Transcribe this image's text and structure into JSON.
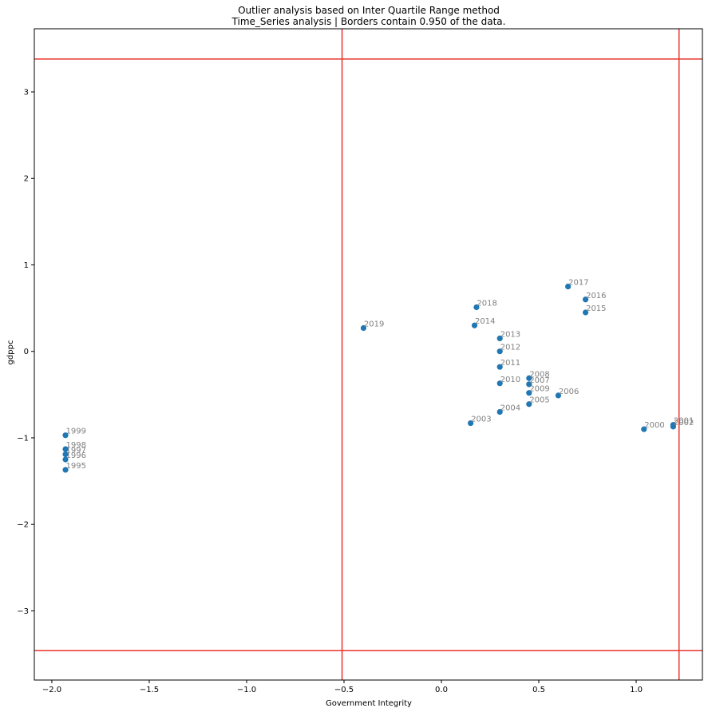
{
  "chart_data": {
    "type": "scatter",
    "title": "Outlier analysis based on Inter Quartile Range method",
    "subtitle": "Time_Series analysis | Borders contain 0.950 of the data.",
    "xlabel": "Government Integrity",
    "ylabel": "gdppc",
    "xlim": [
      -2.09,
      1.34
    ],
    "ylim": [
      -3.8,
      3.73
    ],
    "xticks": [
      -2.0,
      -1.5,
      -1.0,
      -0.5,
      0.0,
      0.5,
      1.0
    ],
    "xtick_labels": [
      "−2.0",
      "−1.5",
      "−1.0",
      "−0.5",
      "0.0",
      "0.5",
      "1.0"
    ],
    "yticks": [
      -3,
      -2,
      -1,
      0,
      1,
      2,
      3
    ],
    "ytick_labels": [
      "−3",
      "−2",
      "−1",
      "0",
      "1",
      "2",
      "3"
    ],
    "grid": false,
    "point_color": "#1f77b4",
    "border_color": "#e8332a",
    "label_color": "#808080",
    "borders": {
      "x": [
        -0.51,
        1.22
      ],
      "y": [
        -3.46,
        3.38
      ]
    },
    "points": [
      {
        "label": "1995",
        "x": -1.93,
        "y": -1.37
      },
      {
        "label": "1996",
        "x": -1.93,
        "y": -1.25
      },
      {
        "label": "1997",
        "x": -1.93,
        "y": -1.19
      },
      {
        "label": "1998",
        "x": -1.93,
        "y": -1.13
      },
      {
        "label": "1999",
        "x": -1.93,
        "y": -0.97
      },
      {
        "label": "2000",
        "x": 1.04,
        "y": -0.9
      },
      {
        "label": "2001",
        "x": 1.19,
        "y": -0.85
      },
      {
        "label": "2002",
        "x": 1.19,
        "y": -0.87
      },
      {
        "label": "2003",
        "x": 0.15,
        "y": -0.83
      },
      {
        "label": "2004",
        "x": 0.3,
        "y": -0.7
      },
      {
        "label": "2005",
        "x": 0.45,
        "y": -0.61
      },
      {
        "label": "2006",
        "x": 0.6,
        "y": -0.51
      },
      {
        "label": "2007",
        "x": 0.45,
        "y": -0.38
      },
      {
        "label": "2008",
        "x": 0.45,
        "y": -0.31
      },
      {
        "label": "2009",
        "x": 0.45,
        "y": -0.48
      },
      {
        "label": "2010",
        "x": 0.3,
        "y": -0.37
      },
      {
        "label": "2011",
        "x": 0.3,
        "y": -0.18
      },
      {
        "label": "2012",
        "x": 0.3,
        "y": 0.0
      },
      {
        "label": "2013",
        "x": 0.3,
        "y": 0.15
      },
      {
        "label": "2014",
        "x": 0.17,
        "y": 0.3
      },
      {
        "label": "2015",
        "x": 0.74,
        "y": 0.45
      },
      {
        "label": "2016",
        "x": 0.74,
        "y": 0.6
      },
      {
        "label": "2017",
        "x": 0.65,
        "y": 0.75
      },
      {
        "label": "2018",
        "x": 0.18,
        "y": 0.51
      },
      {
        "label": "2019",
        "x": -0.4,
        "y": 0.27
      }
    ]
  }
}
